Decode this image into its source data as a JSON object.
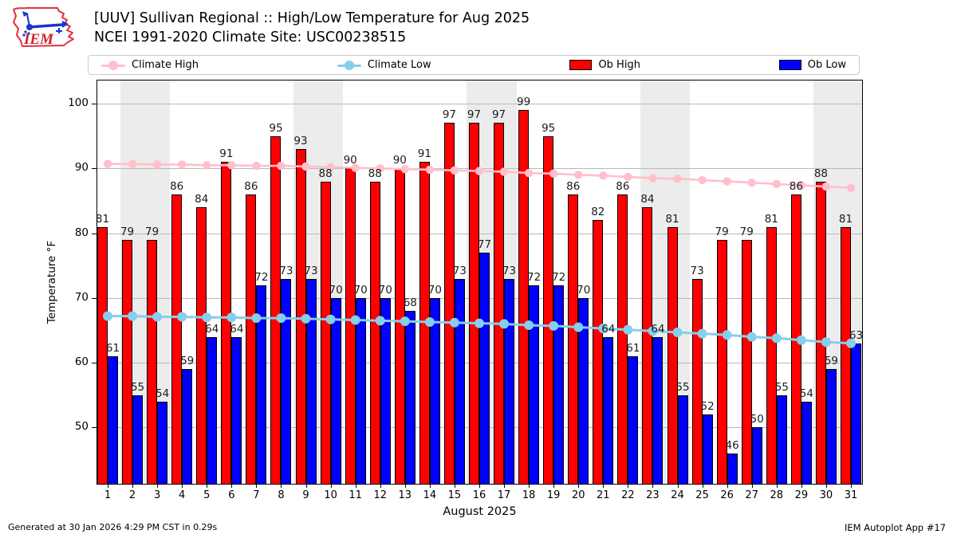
{
  "header": {
    "title_line1": "[UUV] Sullivan Regional :: High/Low Temperature for Aug 2025",
    "title_line2": "NCEI 1991-2020 Climate Site: USC00238515",
    "logo_text": "IEM"
  },
  "legend": {
    "items": [
      {
        "label": "Climate High",
        "type": "line",
        "color": "#ffc0cb"
      },
      {
        "label": "Climate Low",
        "type": "line",
        "color": "#87ceeb"
      },
      {
        "label": "Ob High",
        "type": "rect",
        "color": "#ff0000"
      },
      {
        "label": "Ob Low",
        "type": "rect",
        "color": "#0000ff"
      }
    ]
  },
  "chart_data": {
    "type": "bar",
    "title": "[UUV] Sullivan Regional :: High/Low Temperature for Aug 2025",
    "subtitle": "NCEI 1991-2020 Climate Site: USC00238515",
    "xlabel": "August 2025",
    "ylabel": "Temperature °F",
    "x": [
      1,
      2,
      3,
      4,
      5,
      6,
      7,
      8,
      9,
      10,
      11,
      12,
      13,
      14,
      15,
      16,
      17,
      18,
      19,
      20,
      21,
      22,
      23,
      24,
      25,
      26,
      27,
      28,
      29,
      30,
      31
    ],
    "yticks": [
      50,
      60,
      70,
      80,
      90,
      100
    ],
    "ylim": [
      41.2,
      103.7
    ],
    "grid": true,
    "legend_position": "top",
    "weekend_shading_days": [
      [
        2,
        3
      ],
      [
        9,
        10
      ],
      [
        16,
        17
      ],
      [
        23,
        24
      ],
      [
        30,
        31
      ]
    ],
    "series": [
      {
        "name": "Ob High",
        "type": "bar",
        "color": "#ff0000",
        "values": [
          81,
          79,
          79,
          86,
          84,
          91,
          86,
          95,
          93,
          88,
          90,
          88,
          90,
          91,
          97,
          97,
          97,
          99,
          95,
          86,
          82,
          86,
          84,
          81,
          73,
          79,
          79,
          81,
          86,
          88,
          81
        ]
      },
      {
        "name": "Ob Low",
        "type": "bar",
        "color": "#0000ff",
        "values": [
          61,
          55,
          54,
          59,
          64,
          64,
          72,
          73,
          73,
          70,
          70,
          70,
          68,
          70,
          73,
          77,
          73,
          72,
          72,
          70,
          64,
          61,
          64,
          55,
          52,
          46,
          50,
          55,
          54,
          59,
          63
        ]
      },
      {
        "name": "Climate High",
        "type": "line",
        "color": "#ffc0cb",
        "values": [
          90.7,
          90.7,
          90.6,
          90.6,
          90.5,
          90.5,
          90.4,
          90.4,
          90.3,
          90.2,
          90.1,
          90.0,
          89.9,
          89.8,
          89.7,
          89.6,
          89.5,
          89.3,
          89.2,
          89.0,
          88.9,
          88.7,
          88.5,
          88.4,
          88.2,
          88.0,
          87.8,
          87.6,
          87.4,
          87.2,
          87.0
        ]
      },
      {
        "name": "Climate Low",
        "type": "line",
        "color": "#87ceeb",
        "values": [
          67.2,
          67.2,
          67.1,
          67.1,
          67.0,
          67.0,
          66.9,
          66.9,
          66.8,
          66.7,
          66.6,
          66.5,
          66.4,
          66.3,
          66.2,
          66.1,
          66.0,
          65.8,
          65.7,
          65.5,
          65.3,
          65.1,
          64.9,
          64.7,
          64.5,
          64.3,
          64.0,
          63.8,
          63.5,
          63.2,
          63.0
        ]
      }
    ]
  },
  "colors": {
    "ob_high": "#ff0000",
    "ob_low": "#0000ff",
    "climate_high": "#ffc0cb",
    "climate_low": "#87ceeb",
    "weekend_band": "#ececec",
    "gridline": "#b9b9b9"
  },
  "footer": {
    "left": "Generated at 30 Jan 2026 4:29 PM CST in 0.29s",
    "right": "IEM Autoplot App #17"
  }
}
